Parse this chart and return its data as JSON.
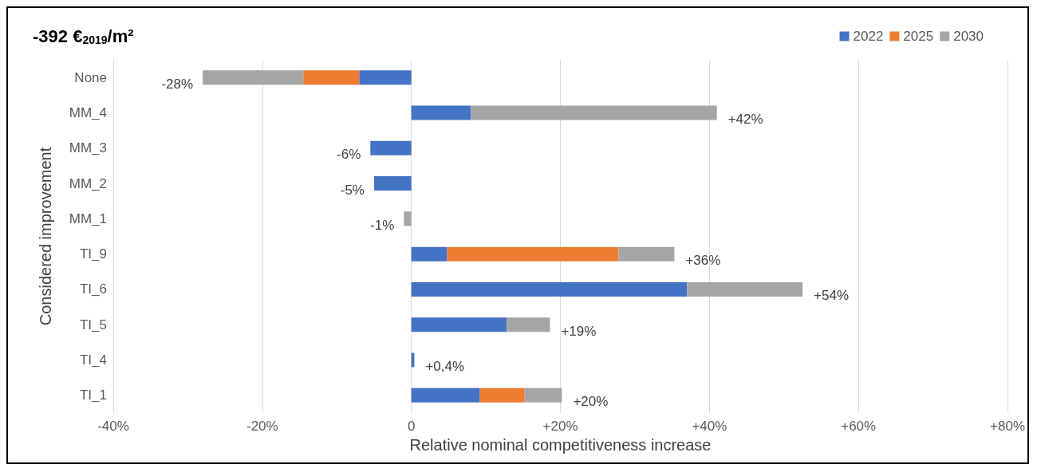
{
  "chart_data": {
    "type": "bar",
    "orientation": "horizontal",
    "stacked": true,
    "title": "-392 €$_{2019}$/m²",
    "xlabel": "Relative nominal competitiveness increase",
    "ylabel": "Considered improvement",
    "categories": [
      "None",
      "MM_4",
      "MM_3",
      "MM_2",
      "MM_1",
      "TI_9",
      "TI_6",
      "TI_5",
      "TI_4",
      "TI_1"
    ],
    "series": [
      {
        "name": "2022",
        "color": "#4472c4",
        "values": [
          -7,
          8,
          -5.5,
          -5,
          null,
          4.8,
          37,
          12.8,
          0.4,
          9.2
        ]
      },
      {
        "name": "2025",
        "color": "#ed7d31",
        "values": [
          -7.5,
          null,
          null,
          null,
          null,
          23,
          null,
          null,
          null,
          6
        ]
      },
      {
        "name": "2030",
        "color": "#a5a5a5",
        "values": [
          -13.5,
          33,
          null,
          null,
          -1,
          7.5,
          15.5,
          5.8,
          null,
          5
        ]
      }
    ],
    "totals": [
      "-28%",
      "+42%",
      "-6%",
      "-5%",
      "-1%",
      "+36%",
      "+54%",
      "+19%",
      "+0,4%",
      "+20%"
    ],
    "xlim": [
      -40,
      80
    ],
    "xticks": [
      {
        "value": -40,
        "label": "-40%"
      },
      {
        "value": -20,
        "label": "-20%"
      },
      0,
      {
        "value": 20,
        "label": "+20%"
      },
      {
        "value": 40,
        "label": "+40%"
      },
      {
        "value": 60,
        "label": "+60%"
      },
      {
        "value": 80,
        "label": "+80%"
      }
    ],
    "grid": "x",
    "legend": "top right"
  }
}
